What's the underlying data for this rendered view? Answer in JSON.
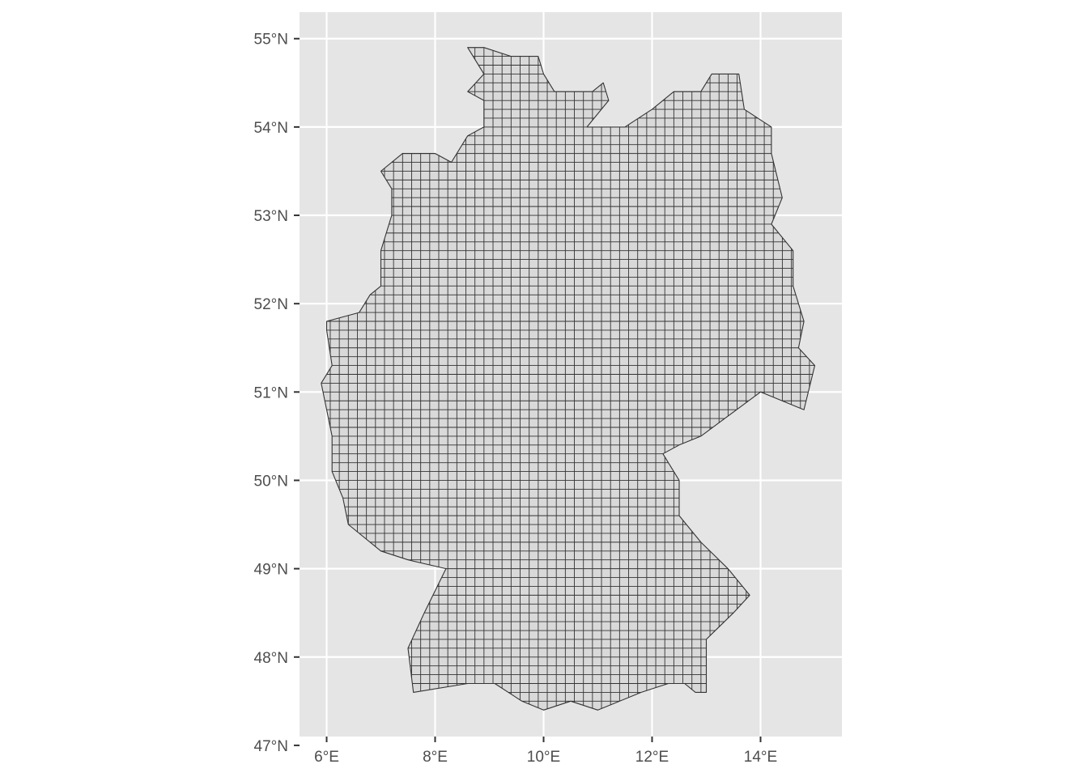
{
  "map": {
    "region": "Germany",
    "style": "ggplot2 default theme",
    "colors": {
      "panel_background": "#e5e5e5",
      "grid_line": "#ffffff",
      "land_fill": "#d9d9d9",
      "cell_stroke": "#333333",
      "tick_label": "#4d4d4d",
      "tick_mark": "#333333"
    },
    "lon_range": [
      5.5,
      15.5
    ],
    "lat_range": [
      47.1,
      55.3
    ],
    "x_ticks": [
      {
        "value": 6,
        "label": "6°E"
      },
      {
        "value": 8,
        "label": "8°E"
      },
      {
        "value": 10,
        "label": "10°E"
      },
      {
        "value": 12,
        "label": "12°E"
      },
      {
        "value": 14,
        "label": "14°E"
      }
    ],
    "y_ticks": [
      {
        "value": 47,
        "label": "47°N"
      },
      {
        "value": 48,
        "label": "48°N"
      },
      {
        "value": 49,
        "label": "49°N"
      },
      {
        "value": 50,
        "label": "50°N"
      },
      {
        "value": 51,
        "label": "51°N"
      },
      {
        "value": 52,
        "label": "52°N"
      },
      {
        "value": 53,
        "label": "53°N"
      },
      {
        "value": 54,
        "label": "54°N"
      },
      {
        "value": 55,
        "label": "55°N"
      }
    ],
    "grid_cell_size_deg": {
      "lon": 0.1667,
      "lat": 0.1
    },
    "outline_lonlat": [
      [
        8.6,
        54.9
      ],
      [
        8.9,
        54.9
      ],
      [
        9.4,
        54.8
      ],
      [
        9.9,
        54.8
      ],
      [
        10.0,
        54.6
      ],
      [
        10.2,
        54.4
      ],
      [
        10.9,
        54.4
      ],
      [
        11.1,
        54.5
      ],
      [
        11.2,
        54.3
      ],
      [
        10.8,
        54.0
      ],
      [
        11.5,
        54.0
      ],
      [
        12.0,
        54.2
      ],
      [
        12.4,
        54.4
      ],
      [
        12.9,
        54.4
      ],
      [
        13.1,
        54.6
      ],
      [
        13.6,
        54.6
      ],
      [
        13.7,
        54.2
      ],
      [
        14.2,
        54.0
      ],
      [
        14.2,
        53.7
      ],
      [
        14.4,
        53.2
      ],
      [
        14.2,
        52.9
      ],
      [
        14.6,
        52.6
      ],
      [
        14.6,
        52.2
      ],
      [
        14.8,
        51.8
      ],
      [
        14.7,
        51.5
      ],
      [
        15.0,
        51.3
      ],
      [
        14.8,
        50.8
      ],
      [
        14.4,
        50.9
      ],
      [
        14.0,
        51.0
      ],
      [
        12.9,
        50.5
      ],
      [
        12.5,
        50.4
      ],
      [
        12.2,
        50.3
      ],
      [
        12.5,
        50.0
      ],
      [
        12.5,
        49.6
      ],
      [
        12.9,
        49.3
      ],
      [
        13.4,
        49.0
      ],
      [
        13.8,
        48.7
      ],
      [
        13.5,
        48.5
      ],
      [
        13.0,
        48.2
      ],
      [
        13.0,
        47.6
      ],
      [
        12.8,
        47.6
      ],
      [
        12.6,
        47.7
      ],
      [
        12.3,
        47.7
      ],
      [
        11.8,
        47.6
      ],
      [
        11.0,
        47.4
      ],
      [
        10.5,
        47.5
      ],
      [
        10.0,
        47.4
      ],
      [
        9.6,
        47.5
      ],
      [
        9.1,
        47.7
      ],
      [
        8.6,
        47.7
      ],
      [
        7.6,
        47.6
      ],
      [
        7.5,
        48.1
      ],
      [
        7.8,
        48.5
      ],
      [
        8.2,
        49.0
      ],
      [
        7.5,
        49.1
      ],
      [
        7.0,
        49.2
      ],
      [
        6.4,
        49.5
      ],
      [
        6.3,
        49.8
      ],
      [
        6.1,
        50.1
      ],
      [
        6.1,
        50.5
      ],
      [
        6.0,
        50.8
      ],
      [
        5.9,
        51.1
      ],
      [
        6.1,
        51.3
      ],
      [
        6.0,
        51.7
      ],
      [
        6.0,
        51.8
      ],
      [
        6.6,
        51.9
      ],
      [
        6.8,
        52.1
      ],
      [
        7.0,
        52.2
      ],
      [
        7.0,
        52.6
      ],
      [
        7.2,
        53.0
      ],
      [
        7.2,
        53.3
      ],
      [
        7.0,
        53.5
      ],
      [
        7.4,
        53.7
      ],
      [
        8.0,
        53.7
      ],
      [
        8.3,
        53.6
      ],
      [
        8.6,
        53.9
      ],
      [
        8.9,
        54.0
      ],
      [
        8.9,
        54.3
      ],
      [
        8.6,
        54.4
      ],
      [
        8.9,
        54.6
      ],
      [
        8.6,
        54.9
      ]
    ]
  }
}
